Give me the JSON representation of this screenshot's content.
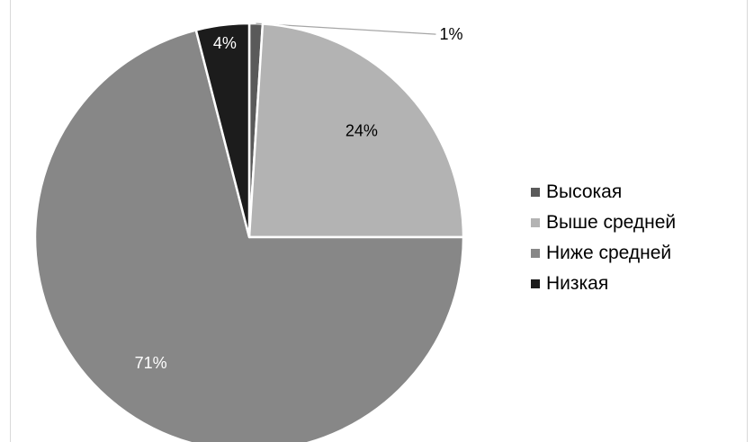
{
  "chart_data": {
    "type": "pie",
    "categories": [
      "Высокая",
      "Выше средней",
      "Ниже средней",
      "Низкая"
    ],
    "values": [
      1,
      24,
      71,
      4
    ],
    "labels": [
      "1%",
      "24%",
      "71%",
      "4%"
    ],
    "colors": [
      "#5a5a5a",
      "#b3b3b3",
      "#878787",
      "#1c1c1c"
    ],
    "legend_position": "right"
  }
}
